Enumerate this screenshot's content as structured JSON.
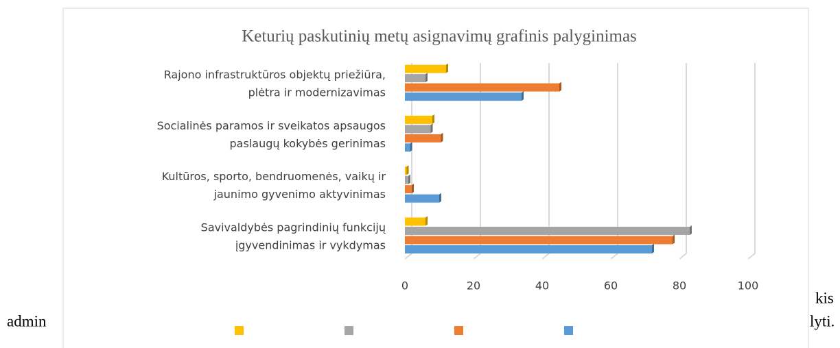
{
  "document": {
    "fragments": [
      "kis",
      "admin",
      "lyti."
    ]
  },
  "chart_data": {
    "type": "hbar3d",
    "title": "Keturių paskutinių metų asignavimų grafinis palyginimas",
    "categories": [
      [
        "Savivaldybės  pagrindinių funkcijų",
        "įgyvendinimas ir vykdymas"
      ],
      [
        "Kultūros, sporto, bendruomenės, vaikų ir",
        "jaunimo gyvenimo aktyvinimas"
      ],
      [
        "Socialinės paramos ir sveikatos apsaugos",
        "paslaugų kokybės gerinimas"
      ],
      [
        "Rajono infrastruktūros objektų priežiūra,",
        "plėtra ir modernizavimas"
      ]
    ],
    "series": [
      {
        "color": "#5b9bd5",
        "values": [
          72,
          10,
          1.5,
          34
        ]
      },
      {
        "color": "#ed7d31",
        "values": [
          78,
          2,
          10.5,
          45
        ]
      },
      {
        "color": "#a5a5a5",
        "values": [
          83,
          1,
          7.5,
          6
        ]
      },
      {
        "color": "#ffc000",
        "values": [
          6,
          0.5,
          8,
          12
        ]
      }
    ],
    "xlim": [
      0,
      100
    ],
    "xticks": [
      0,
      20,
      40,
      60,
      80,
      100
    ],
    "grid": true,
    "legend": "bottom"
  }
}
